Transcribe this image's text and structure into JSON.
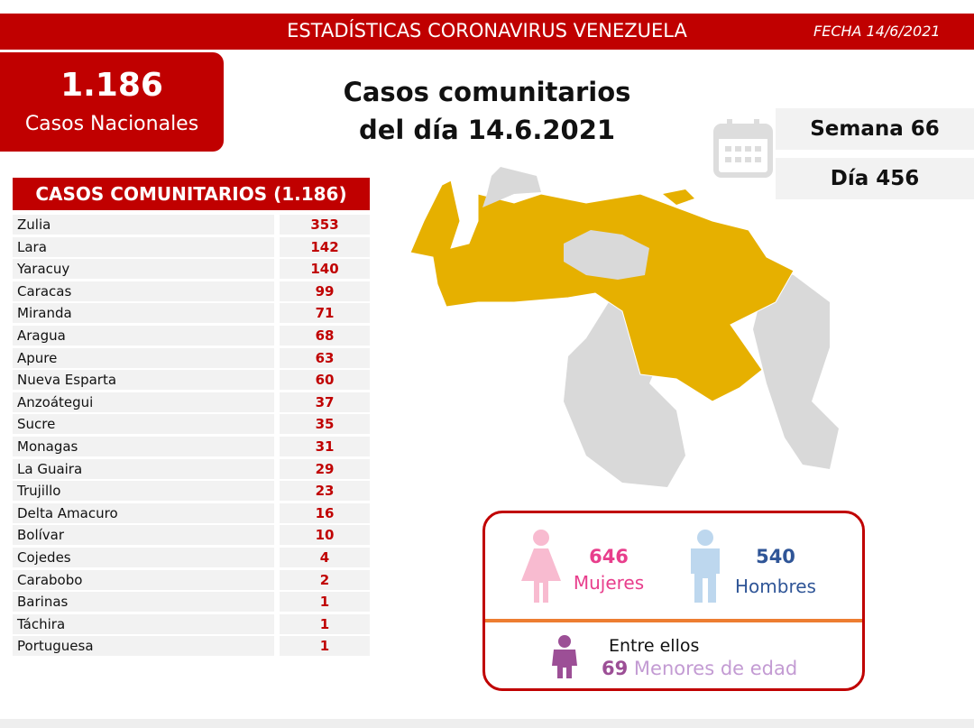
{
  "header": {
    "title": "ESTADÍSTICAS CORONAVIRUS VENEZUELA",
    "date": "FECHA 14/6/2021"
  },
  "national": {
    "value": "1.186",
    "label": "Casos Nacionales"
  },
  "headline": [
    "Casos comunitarios",
    "del día 14.6.2021"
  ],
  "week": "Semana 66",
  "day": "Día 456",
  "table": {
    "title": "CASOS COMUNITARIOS (1.186)",
    "rows": [
      [
        "Zulia",
        353
      ],
      [
        "Lara",
        142
      ],
      [
        "Yaracuy",
        140
      ],
      [
        "Caracas",
        99
      ],
      [
        "Miranda",
        71
      ],
      [
        "Aragua",
        68
      ],
      [
        "Apure",
        63
      ],
      [
        "Nueva Esparta",
        60
      ],
      [
        "Anzoátegui",
        37
      ],
      [
        "Sucre",
        35
      ],
      [
        "Monagas",
        31
      ],
      [
        "La Guaira",
        29
      ],
      [
        "Trujillo",
        23
      ],
      [
        "Delta Amacuro",
        16
      ],
      [
        "Bolívar",
        10
      ],
      [
        "Cojedes",
        4
      ],
      [
        "Carabobo",
        2
      ],
      [
        "Barinas",
        1
      ],
      [
        "Táchira",
        1
      ],
      [
        "Portuguesa",
        1
      ]
    ]
  },
  "gender": {
    "women": {
      "value": 646,
      "label": "Mujeres"
    },
    "men": {
      "value": 540,
      "label": "Hombres"
    },
    "intro": "Entre ellos",
    "minors": {
      "value": 69,
      "label": "Menores de edad"
    }
  }
}
